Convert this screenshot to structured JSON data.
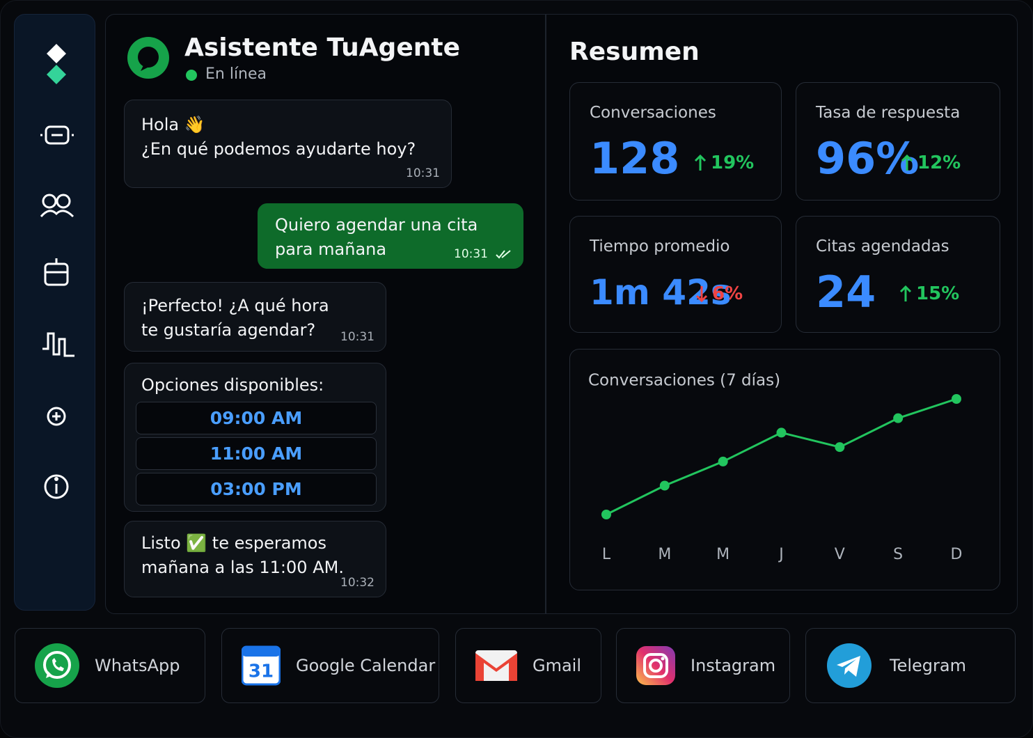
{
  "header": {
    "title": "Asistente TuAgente",
    "status": "En línea"
  },
  "chat": {
    "messages": [
      {
        "from": "bot",
        "lines": [
          "Hola 👋",
          "¿En qué podemos ayudarte hoy?"
        ],
        "time": "10:31"
      },
      {
        "from": "user",
        "lines": [
          "Quiero agendar una cita",
          "para mañana"
        ],
        "time": "10:31"
      },
      {
        "from": "bot",
        "lines": [
          "¡Perfecto! ¿A qué hora",
          "te gustaría agendar?"
        ],
        "time": "10:31"
      },
      {
        "from": "bot",
        "lines": [
          "Listo ✅ te esperamos",
          "mañana a las 11:00 AM."
        ],
        "time": "10:32"
      }
    ],
    "options": {
      "title": "Opciones disponibles:",
      "items": [
        "09:00 AM",
        "11:00 AM",
        "03:00 PM"
      ]
    }
  },
  "summary": {
    "title": "Resumen",
    "stats": [
      {
        "label": "Conversaciones",
        "value": "128",
        "change": "19%",
        "direction": "up"
      },
      {
        "label": "Tasa de respuesta",
        "value": "96%",
        "change": "12%",
        "direction": "up"
      },
      {
        "label": "Tiempo promedio",
        "value": "1m 42s",
        "change": "6%",
        "direction": "down"
      },
      {
        "label": "Citas agendadas",
        "value": "24",
        "change": "15%",
        "direction": "up"
      }
    ]
  },
  "chart_data": {
    "type": "line",
    "title": "Conversaciones (7 días)",
    "categories": [
      "L",
      "M",
      "M",
      "J",
      "V",
      "S",
      "D"
    ],
    "series": [
      {
        "color": "#22c55e",
        "values": [
          20,
          26,
          31,
          37,
          34,
          40,
          44
        ]
      }
    ],
    "grid": false
  },
  "integrations": [
    "WhatsApp",
    "Google Calendar",
    "Gmail",
    "Instagram",
    "Telegram"
  ]
}
